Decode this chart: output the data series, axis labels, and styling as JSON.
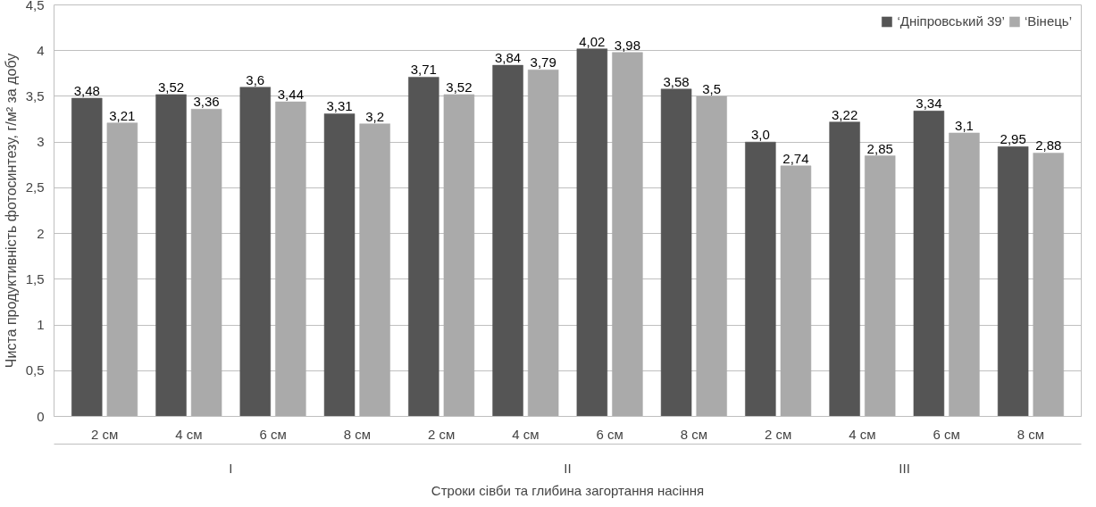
{
  "chart_data": {
    "type": "bar",
    "xlabel": "Строки сівби та глибина загортання насіння",
    "ylabel": "Чиста продуктивність фотосинтезу, г/м² за добу",
    "categories": [
      "2 см",
      "4 см",
      "6 см",
      "8 см",
      "2 см",
      "4 см",
      "6 см",
      "8 см",
      "2 см",
      "4 см",
      "6 см",
      "8 см"
    ],
    "annotations": [
      "I",
      "II",
      "III"
    ],
    "series": [
      {
        "name": "‘Дніпровський 39’",
        "color": "#555555",
        "values": [
          3.48,
          3.52,
          3.6,
          3.31,
          3.71,
          3.84,
          4.02,
          3.58,
          3.0,
          3.22,
          3.34,
          2.95
        ],
        "value_labels": [
          "3,48",
          "3,52",
          "3,6",
          "3,31",
          "3,71",
          "3,84",
          "4,02",
          "3,58",
          "3,0",
          "3,22",
          "3,34",
          "2,95"
        ]
      },
      {
        "name": "‘Вінець’",
        "color": "#aaaaaa",
        "values": [
          3.21,
          3.36,
          3.44,
          3.2,
          3.52,
          3.79,
          3.98,
          3.5,
          2.74,
          2.85,
          3.1,
          2.88
        ],
        "value_labels": [
          "3,21",
          "3,36",
          "3,44",
          "3,2",
          "3,52",
          "3,79",
          "3,98",
          "3,5",
          "2,74",
          "2,85",
          "3,1",
          "2,88"
        ]
      }
    ],
    "ylim": [
      0,
      4.5
    ],
    "yticks": [
      0,
      {
        "value": 0.5,
        "label": "0,5"
      },
      1,
      {
        "value": 1.5,
        "label": "1,5"
      },
      2,
      {
        "value": 2.5,
        "label": "2,5"
      },
      3,
      {
        "value": 3.5,
        "label": "3,5"
      },
      4,
      {
        "value": 4.5,
        "label": "4,5"
      }
    ],
    "grid": "y",
    "legend": "top right"
  }
}
